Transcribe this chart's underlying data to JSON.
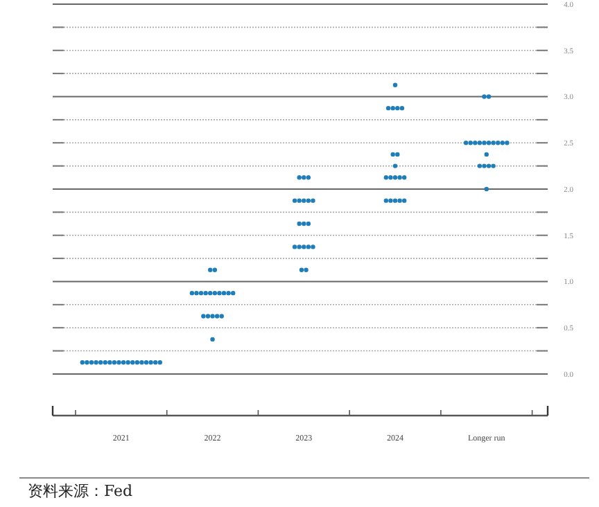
{
  "chart_data": {
    "type": "scatter",
    "series": [
      {
        "color": "#1f7db8",
        "x": [
          2020.575,
          2020.625,
          2020.675,
          2020.725,
          2020.775,
          2020.825,
          2020.875,
          2020.925,
          2020.975,
          2021.025,
          2021.075,
          2021.125,
          2021.175,
          2021.225,
          2021.275,
          2021.325,
          2021.375,
          2021.425
        ],
        "values": [
          0.125,
          0.125,
          0.125,
          0.125,
          0.125,
          0.125,
          0.125,
          0.125,
          0.125,
          0.125,
          0.125,
          0.125,
          0.125,
          0.125,
          0.125,
          0.125,
          0.125,
          0.125
        ]
      },
      {
        "color": "#1f7db8",
        "x": [
          2022,
          2021.9,
          2021.95,
          2022,
          2022.05,
          2022.1,
          2021.775,
          2021.825,
          2021.875,
          2021.925,
          2021.975,
          2022.025,
          2022.075,
          2022.125,
          2022.175,
          2022.225,
          2021.975,
          2022.025
        ],
        "values": [
          0.375,
          0.625,
          0.625,
          0.625,
          0.625,
          0.625,
          0.875,
          0.875,
          0.875,
          0.875,
          0.875,
          0.875,
          0.875,
          0.875,
          0.875,
          0.875,
          1.125,
          1.125
        ]
      },
      {
        "color": "#1f7db8",
        "x": [
          2022.975,
          2023.025,
          2022.9,
          2022.95,
          2023,
          2023.05,
          2023.1,
          2022.95,
          2023,
          2023.05,
          2022.9,
          2022.95,
          2023,
          2023.05,
          2023.1,
          2022.95,
          2023,
          2023.05
        ],
        "values": [
          1.125,
          1.125,
          1.375,
          1.375,
          1.375,
          1.375,
          1.375,
          1.625,
          1.625,
          1.625,
          1.875,
          1.875,
          1.875,
          1.875,
          1.875,
          2.125,
          2.125,
          2.125
        ]
      },
      {
        "color": "#1f7db8",
        "x": [
          2023.9,
          2023.95,
          2024,
          2024.05,
          2024.1,
          2023.9,
          2023.95,
          2024,
          2024.05,
          2024.1,
          2024,
          2023.975,
          2024.025,
          2023.925,
          2023.975,
          2024.025,
          2024.075,
          2024
        ],
        "values": [
          1.875,
          1.875,
          1.875,
          1.875,
          1.875,
          2.125,
          2.125,
          2.125,
          2.125,
          2.125,
          2.25,
          2.375,
          2.375,
          2.875,
          2.875,
          2.875,
          2.875,
          3.125
        ]
      },
      {
        "color": "#1f7db8",
        "x": [
          2025,
          2024.925,
          2024.975,
          2025.025,
          2025.075,
          2025,
          2024.775,
          2024.825,
          2024.875,
          2024.925,
          2024.975,
          2025.025,
          2025.075,
          2025.125,
          2025.175,
          2025.225,
          2024.975,
          2025.025
        ],
        "values": [
          2.0,
          2.25,
          2.25,
          2.25,
          2.25,
          2.375,
          2.5,
          2.5,
          2.5,
          2.5,
          2.5,
          2.5,
          2.5,
          2.5,
          2.5,
          2.5,
          3.0,
          3.0
        ]
      }
    ],
    "xlim": [
      2020.25,
      2025.67
    ],
    "xticks": [
      {
        "value": 2020.5,
        "label": null
      },
      2021,
      {
        "value": 2021.5,
        "label": null
      },
      2022,
      {
        "value": 2022.5,
        "label": null
      },
      2023,
      {
        "value": 2023.5,
        "label": null
      },
      2024,
      {
        "value": 2024.5,
        "label": null
      },
      {
        "value": 2025,
        "label": "Longer run"
      },
      {
        "value": 2025.5,
        "label": null
      }
    ],
    "ylim": [
      -0.45,
      4.0
    ],
    "yticks": [
      {
        "value": 0,
        "label": "0.0"
      },
      {
        "value": 0.25,
        "label": null
      },
      {
        "value": 0.5,
        "label": "0.5"
      },
      {
        "value": 0.75,
        "label": null
      },
      {
        "value": 1,
        "label": "1.0"
      },
      {
        "value": 1.25,
        "label": null
      },
      {
        "value": 1.5,
        "label": "1.5"
      },
      {
        "value": 1.75,
        "label": null
      },
      {
        "value": 2,
        "label": "2.0"
      },
      {
        "value": 2.25,
        "label": null
      },
      {
        "value": 2.5,
        "label": "2.5"
      },
      {
        "value": 2.75,
        "label": null
      },
      {
        "value": 3,
        "label": "3.0"
      },
      {
        "value": 3.25,
        "label": null
      },
      {
        "value": 3.5,
        "label": "3.5"
      },
      {
        "value": 3.75,
        "label": null
      },
      {
        "value": 4,
        "label": "4.0"
      }
    ],
    "grid": "y",
    "marker": "circle",
    "annotations": [
      "资料来源：Fed"
    ]
  }
}
